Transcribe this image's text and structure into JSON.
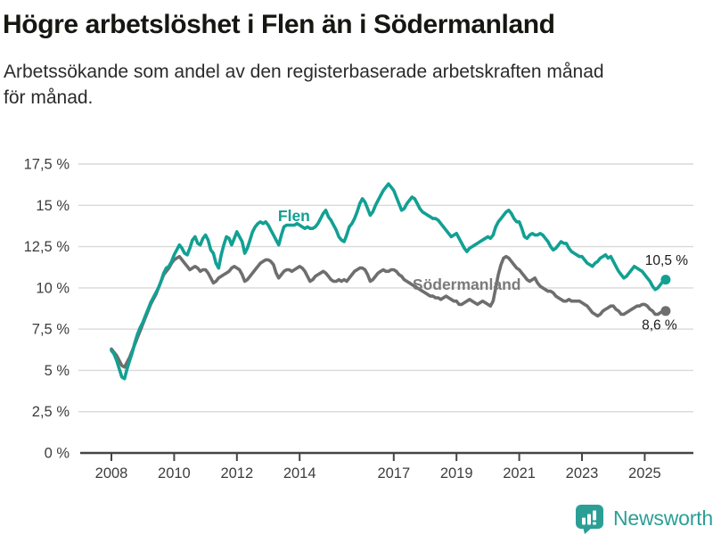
{
  "header": {
    "title": "Högre arbetslöshet i Flen än i Södermanland",
    "subtitle_lines": [
      "Arbetssökande som andel av den registerbaserade arbetskraften månad",
      "för månad."
    ]
  },
  "footer": {
    "brand": "Newsworthy"
  },
  "chart_data": {
    "type": "line",
    "title": "Högre arbetslöshet i Flen än i Södermanland",
    "subtitle": "Arbetssökande som andel av den registerbaserade arbetskraften månad för månad.",
    "unit": "%",
    "grid": true,
    "legend_position": "inline-labels",
    "x_start": "2008-01",
    "x_step_months": 1,
    "x_end": "2025-09",
    "ylim": [
      0,
      18.5
    ],
    "x_ticks": [
      {
        "year": 2008,
        "label": "2008"
      },
      {
        "year": 2010,
        "label": "2010"
      },
      {
        "year": 2012,
        "label": "2012"
      },
      {
        "year": 2014,
        "label": "2014"
      },
      {
        "year": 2017,
        "label": "2017"
      },
      {
        "year": 2019,
        "label": "2019"
      },
      {
        "year": 2021,
        "label": "2021"
      },
      {
        "year": 2023,
        "label": "2023"
      },
      {
        "year": 2025,
        "label": "2025"
      }
    ],
    "y_ticks": [
      {
        "value": 0,
        "label": "0 %"
      },
      {
        "value": 2.5,
        "label": "2,5 %"
      },
      {
        "value": 5,
        "label": "5 %"
      },
      {
        "value": 7.5,
        "label": "7,5 %"
      },
      {
        "value": 10,
        "label": "10 %"
      },
      {
        "value": 12.5,
        "label": "12,5 %"
      },
      {
        "value": 15,
        "label": "15 %"
      },
      {
        "value": 17.5,
        "label": "17,5 %"
      }
    ],
    "colors": {
      "flen": "#12a093",
      "sodermanland": "#6e6e6e",
      "sodermanland_label": "#7a7a7a",
      "grid": "#d9d9d9",
      "axis": "#454545",
      "value_label": "#1a1a1a"
    },
    "series": [
      {
        "name": "Södermanland",
        "color": "#6e6e6e",
        "label_color": "#7a7a7a",
        "final_value": 8.6,
        "end_label": "8,6 %",
        "end_label_offset": [
          -7,
          20.5
        ],
        "label_pos": {
          "year": 2017.6,
          "value": 9.88
        },
        "values": [
          6.3,
          6.1,
          5.9,
          5.6,
          5.3,
          5.2,
          5.5,
          5.8,
          6.2,
          6.6,
          7.0,
          7.4,
          7.8,
          8.2,
          8.6,
          9.0,
          9.3,
          9.6,
          10.0,
          10.4,
          10.8,
          11.0,
          11.2,
          11.5,
          11.7,
          11.8,
          11.9,
          11.7,
          11.5,
          11.3,
          11.1,
          11.2,
          11.3,
          11.2,
          11.0,
          11.1,
          11.1,
          10.9,
          10.6,
          10.3,
          10.4,
          10.6,
          10.7,
          10.8,
          10.9,
          11.0,
          11.2,
          11.3,
          11.2,
          11.1,
          10.8,
          10.4,
          10.5,
          10.7,
          10.9,
          11.1,
          11.3,
          11.5,
          11.6,
          11.7,
          11.7,
          11.6,
          11.4,
          10.9,
          10.6,
          10.8,
          11.0,
          11.1,
          11.1,
          11.0,
          11.1,
          11.2,
          11.3,
          11.2,
          11.0,
          10.7,
          10.4,
          10.5,
          10.7,
          10.8,
          10.9,
          11.0,
          10.9,
          10.7,
          10.5,
          10.4,
          10.4,
          10.5,
          10.4,
          10.5,
          10.4,
          10.6,
          10.8,
          11.0,
          11.1,
          11.2,
          11.2,
          11.1,
          10.8,
          10.4,
          10.5,
          10.7,
          10.9,
          11.0,
          11.1,
          11.0,
          11.0,
          11.1,
          11.1,
          11.0,
          10.8,
          10.7,
          10.5,
          10.4,
          10.3,
          10.2,
          10.1,
          10.0,
          9.9,
          9.8,
          9.7,
          9.6,
          9.5,
          9.5,
          9.4,
          9.4,
          9.3,
          9.4,
          9.5,
          9.4,
          9.3,
          9.2,
          9.2,
          9.0,
          9.0,
          9.1,
          9.2,
          9.3,
          9.2,
          9.1,
          9.0,
          9.1,
          9.2,
          9.1,
          9.0,
          8.9,
          9.2,
          10.0,
          10.8,
          11.4,
          11.8,
          11.9,
          11.8,
          11.6,
          11.4,
          11.2,
          11.1,
          10.9,
          10.7,
          10.5,
          10.4,
          10.5,
          10.6,
          10.3,
          10.1,
          10.0,
          9.9,
          9.8,
          9.8,
          9.7,
          9.5,
          9.4,
          9.3,
          9.2,
          9.2,
          9.3,
          9.2,
          9.2,
          9.2,
          9.2,
          9.1,
          9.0,
          8.9,
          8.7,
          8.5,
          8.4,
          8.3,
          8.4,
          8.6,
          8.7,
          8.8,
          8.9,
          8.9,
          8.7,
          8.6,
          8.4,
          8.4,
          8.5,
          8.6,
          8.7,
          8.8,
          8.9,
          8.9,
          9.0,
          9.0,
          8.9,
          8.7,
          8.6,
          8.4,
          8.4,
          8.5,
          8.6,
          8.6
        ]
      },
      {
        "name": "Flen",
        "color": "#12a093",
        "label_color": "#12a093",
        "final_value": 10.5,
        "end_label": "10,5 %",
        "end_label_offset": [
          1,
          -16.5
        ],
        "label_pos": {
          "year": 2013.31,
          "value": 14.05
        },
        "values": [
          6.2,
          6.0,
          5.6,
          5.1,
          4.6,
          4.5,
          5.1,
          5.6,
          6.1,
          6.7,
          7.2,
          7.6,
          7.9,
          8.3,
          8.7,
          9.1,
          9.4,
          9.7,
          10.0,
          10.4,
          10.9,
          11.2,
          11.3,
          11.6,
          12.0,
          12.3,
          12.6,
          12.4,
          12.1,
          12.0,
          12.4,
          12.9,
          13.1,
          12.7,
          12.6,
          13.0,
          13.2,
          12.9,
          12.3,
          12.1,
          11.5,
          11.2,
          12.0,
          12.6,
          13.1,
          13.0,
          12.6,
          13.0,
          13.4,
          13.1,
          12.8,
          12.1,
          12.4,
          12.9,
          13.4,
          13.7,
          13.9,
          14.0,
          13.9,
          14.0,
          13.8,
          13.5,
          13.2,
          12.9,
          12.6,
          13.2,
          13.7,
          13.8,
          13.8,
          13.8,
          13.8,
          13.9,
          13.8,
          13.7,
          13.6,
          13.7,
          13.6,
          13.6,
          13.7,
          13.9,
          14.2,
          14.5,
          14.7,
          14.3,
          14.1,
          13.8,
          13.5,
          13.1,
          12.9,
          12.8,
          13.2,
          13.7,
          13.9,
          14.2,
          14.6,
          15.1,
          15.4,
          15.2,
          14.8,
          14.4,
          14.6,
          15.0,
          15.3,
          15.6,
          15.9,
          16.1,
          16.3,
          16.1,
          15.9,
          15.5,
          15.1,
          14.7,
          14.8,
          15.1,
          15.3,
          15.5,
          15.4,
          15.1,
          14.8,
          14.6,
          14.5,
          14.4,
          14.3,
          14.2,
          14.2,
          14.1,
          13.9,
          13.7,
          13.5,
          13.3,
          13.1,
          13.2,
          13.3,
          13.0,
          12.7,
          12.4,
          12.2,
          12.4,
          12.5,
          12.6,
          12.7,
          12.8,
          12.9,
          13.0,
          13.1,
          13.0,
          13.2,
          13.7,
          14.0,
          14.2,
          14.4,
          14.6,
          14.7,
          14.5,
          14.2,
          14.0,
          14.0,
          13.6,
          13.1,
          13.0,
          13.2,
          13.3,
          13.2,
          13.2,
          13.3,
          13.2,
          13.0,
          12.8,
          12.5,
          12.3,
          12.4,
          12.6,
          12.8,
          12.7,
          12.7,
          12.4,
          12.2,
          12.1,
          12.0,
          11.9,
          11.9,
          11.7,
          11.5,
          11.4,
          11.3,
          11.5,
          11.6,
          11.8,
          11.9,
          12.0,
          11.8,
          11.9,
          11.6,
          11.3,
          11.0,
          10.8,
          10.6,
          10.7,
          10.9,
          11.1,
          11.3,
          11.2,
          11.1,
          11.0,
          10.8,
          10.6,
          10.4,
          10.1,
          9.9,
          10.0,
          10.2,
          10.4,
          10.5
        ]
      }
    ]
  }
}
